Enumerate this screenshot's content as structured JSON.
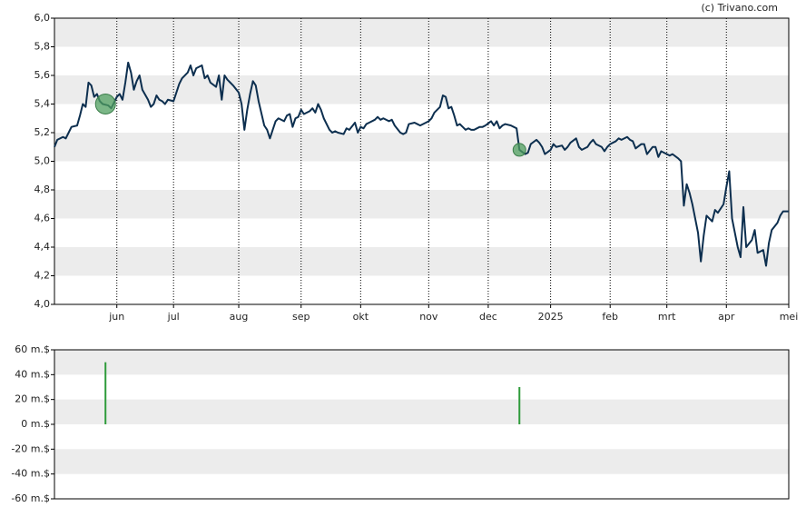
{
  "credit": "(c) Trivano.com",
  "chart_data": [
    {
      "type": "line",
      "color": "#0d2f4f",
      "line_width": 2,
      "x": [
        0,
        1,
        3,
        4,
        5,
        6,
        8,
        9,
        10,
        11,
        12,
        13,
        14,
        15,
        16,
        17,
        19,
        20,
        22,
        23,
        24,
        25,
        26,
        27,
        28,
        29,
        30,
        31,
        33,
        34,
        35,
        36,
        37,
        38,
        39,
        40,
        42,
        43,
        44,
        45,
        47,
        48,
        49,
        50,
        52,
        53,
        54,
        55,
        57,
        58,
        59,
        60,
        61,
        62,
        63,
        65,
        66,
        67,
        68,
        69,
        70,
        71,
        72,
        74,
        75,
        76,
        77,
        78,
        79,
        81,
        82,
        83,
        84,
        85,
        86,
        87,
        88,
        90,
        91,
        92,
        93,
        94,
        95,
        97,
        98,
        99,
        100,
        102,
        103,
        104,
        106,
        107,
        108,
        109,
        110,
        111,
        113,
        114,
        115,
        116,
        118,
        119,
        120,
        122,
        123,
        124,
        125,
        127,
        128,
        129,
        131,
        132,
        133,
        134,
        136,
        137,
        138,
        139,
        140,
        141,
        142,
        143,
        145,
        146,
        147,
        148,
        150,
        151,
        152,
        154,
        155,
        156,
        157,
        158,
        159,
        161,
        162,
        163,
        164,
        166,
        167,
        168,
        170,
        171,
        172,
        173,
        175,
        176,
        177,
        179,
        180,
        181,
        182,
        184,
        185,
        186,
        188,
        189,
        190,
        191,
        193,
        194,
        195,
        196,
        198,
        199,
        200,
        202,
        203,
        204,
        205,
        207,
        208,
        209,
        211,
        212,
        213,
        214,
        216,
        217,
        218,
        220,
        221,
        222,
        223,
        224,
        225,
        227,
        228,
        229,
        230,
        232,
        233,
        234,
        236,
        237,
        238,
        239,
        241,
        242,
        243,
        244,
        246,
        247,
        248,
        250,
        251,
        252,
        253,
        255,
        256,
        257,
        259
      ],
      "values": [
        5.1,
        5.15,
        5.17,
        5.16,
        5.2,
        5.24,
        5.25,
        5.32,
        5.4,
        5.38,
        5.55,
        5.53,
        5.45,
        5.47,
        5.42,
        5.4,
        5.39,
        5.37,
        5.45,
        5.47,
        5.43,
        5.55,
        5.69,
        5.62,
        5.5,
        5.56,
        5.6,
        5.5,
        5.43,
        5.38,
        5.4,
        5.46,
        5.43,
        5.42,
        5.4,
        5.43,
        5.42,
        5.48,
        5.54,
        5.58,
        5.62,
        5.67,
        5.6,
        5.65,
        5.67,
        5.58,
        5.6,
        5.55,
        5.52,
        5.6,
        5.43,
        5.6,
        5.57,
        5.55,
        5.53,
        5.48,
        5.4,
        5.22,
        5.36,
        5.47,
        5.56,
        5.53,
        5.42,
        5.25,
        5.22,
        5.16,
        5.22,
        5.28,
        5.3,
        5.28,
        5.32,
        5.33,
        5.24,
        5.3,
        5.31,
        5.36,
        5.33,
        5.35,
        5.37,
        5.34,
        5.4,
        5.36,
        5.3,
        5.22,
        5.2,
        5.21,
        5.2,
        5.19,
        5.23,
        5.22,
        5.27,
        5.2,
        5.24,
        5.23,
        5.26,
        5.27,
        5.29,
        5.31,
        5.29,
        5.3,
        5.28,
        5.29,
        5.25,
        5.2,
        5.19,
        5.2,
        5.26,
        5.27,
        5.26,
        5.25,
        5.27,
        5.28,
        5.3,
        5.34,
        5.38,
        5.46,
        5.45,
        5.37,
        5.38,
        5.32,
        5.25,
        5.26,
        5.22,
        5.23,
        5.22,
        5.22,
        5.24,
        5.24,
        5.25,
        5.28,
        5.25,
        5.28,
        5.23,
        5.25,
        5.26,
        5.25,
        5.24,
        5.23,
        5.08,
        5.05,
        5.06,
        5.12,
        5.15,
        5.13,
        5.1,
        5.05,
        5.08,
        5.12,
        5.1,
        5.11,
        5.08,
        5.1,
        5.13,
        5.16,
        5.1,
        5.08,
        5.1,
        5.13,
        5.15,
        5.12,
        5.1,
        5.07,
        5.1,
        5.12,
        5.14,
        5.16,
        5.15,
        5.17,
        5.15,
        5.14,
        5.09,
        5.12,
        5.12,
        5.05,
        5.1,
        5.1,
        5.03,
        5.07,
        5.05,
        5.04,
        5.05,
        5.02,
        5.0,
        4.69,
        4.84,
        4.78,
        4.7,
        4.5,
        4.3,
        4.48,
        4.62,
        4.58,
        4.66,
        4.64,
        4.7,
        4.82,
        4.93,
        4.6,
        4.4,
        4.33,
        4.68,
        4.4,
        4.45,
        4.52,
        4.36,
        4.38,
        4.27,
        4.43,
        4.52,
        4.57,
        4.62,
        4.65,
        4.65
      ],
      "events": {
        "x": [
          18,
          164
        ],
        "values": [
          5.4,
          5.08
        ],
        "color": "#4f9f5f"
      },
      "xlim": [
        0,
        259
      ],
      "xticks": [
        {
          "value": 22,
          "label": "jun"
        },
        {
          "value": 42,
          "label": "jul"
        },
        {
          "value": 65,
          "label": "aug"
        },
        {
          "value": 87,
          "label": "sep"
        },
        {
          "value": 108,
          "label": "okt"
        },
        {
          "value": 132,
          "label": "nov"
        },
        {
          "value": 153,
          "label": "dec"
        },
        {
          "value": 175,
          "label": "2025"
        },
        {
          "value": 196,
          "label": "feb"
        },
        {
          "value": 216,
          "label": "mrt"
        },
        {
          "value": 237,
          "label": "apr"
        },
        {
          "value": 259,
          "label": "mei"
        }
      ],
      "ylim": [
        4.0,
        6.0
      ],
      "yticks": [
        {
          "value": 4.0,
          "label": "4,0"
        },
        {
          "value": 4.2,
          "label": "4,2"
        },
        {
          "value": 4.4,
          "label": "4,4"
        },
        {
          "value": 4.6,
          "label": "4,6"
        },
        {
          "value": 4.8,
          "label": "4,8"
        },
        {
          "value": 5.0,
          "label": "5,0"
        },
        {
          "value": 5.2,
          "label": "5,2"
        },
        {
          "value": 5.4,
          "label": "5,4"
        },
        {
          "value": 5.6,
          "label": "5,6"
        },
        {
          "value": 5.8,
          "label": "5,8"
        },
        {
          "value": 6.0,
          "label": "6,0"
        }
      ],
      "grid": "bands",
      "xgrid": "dotted"
    },
    {
      "type": "bar",
      "color": "#2e9b3a",
      "x": [
        18,
        164
      ],
      "values": [
        50,
        30
      ],
      "xlim": [
        0,
        259
      ],
      "ylim": [
        -60,
        60
      ],
      "yticks": [
        {
          "value": -60,
          "label": "-60 m.$"
        },
        {
          "value": -40,
          "label": "-40 m.$"
        },
        {
          "value": -20,
          "label": "-20 m.$"
        },
        {
          "value": 0,
          "label": "0 m.$"
        },
        {
          "value": 20,
          "label": "20 m.$"
        },
        {
          "value": 40,
          "label": "40 m.$"
        },
        {
          "value": 60,
          "label": "60 m.$"
        }
      ],
      "grid": "bands"
    }
  ]
}
